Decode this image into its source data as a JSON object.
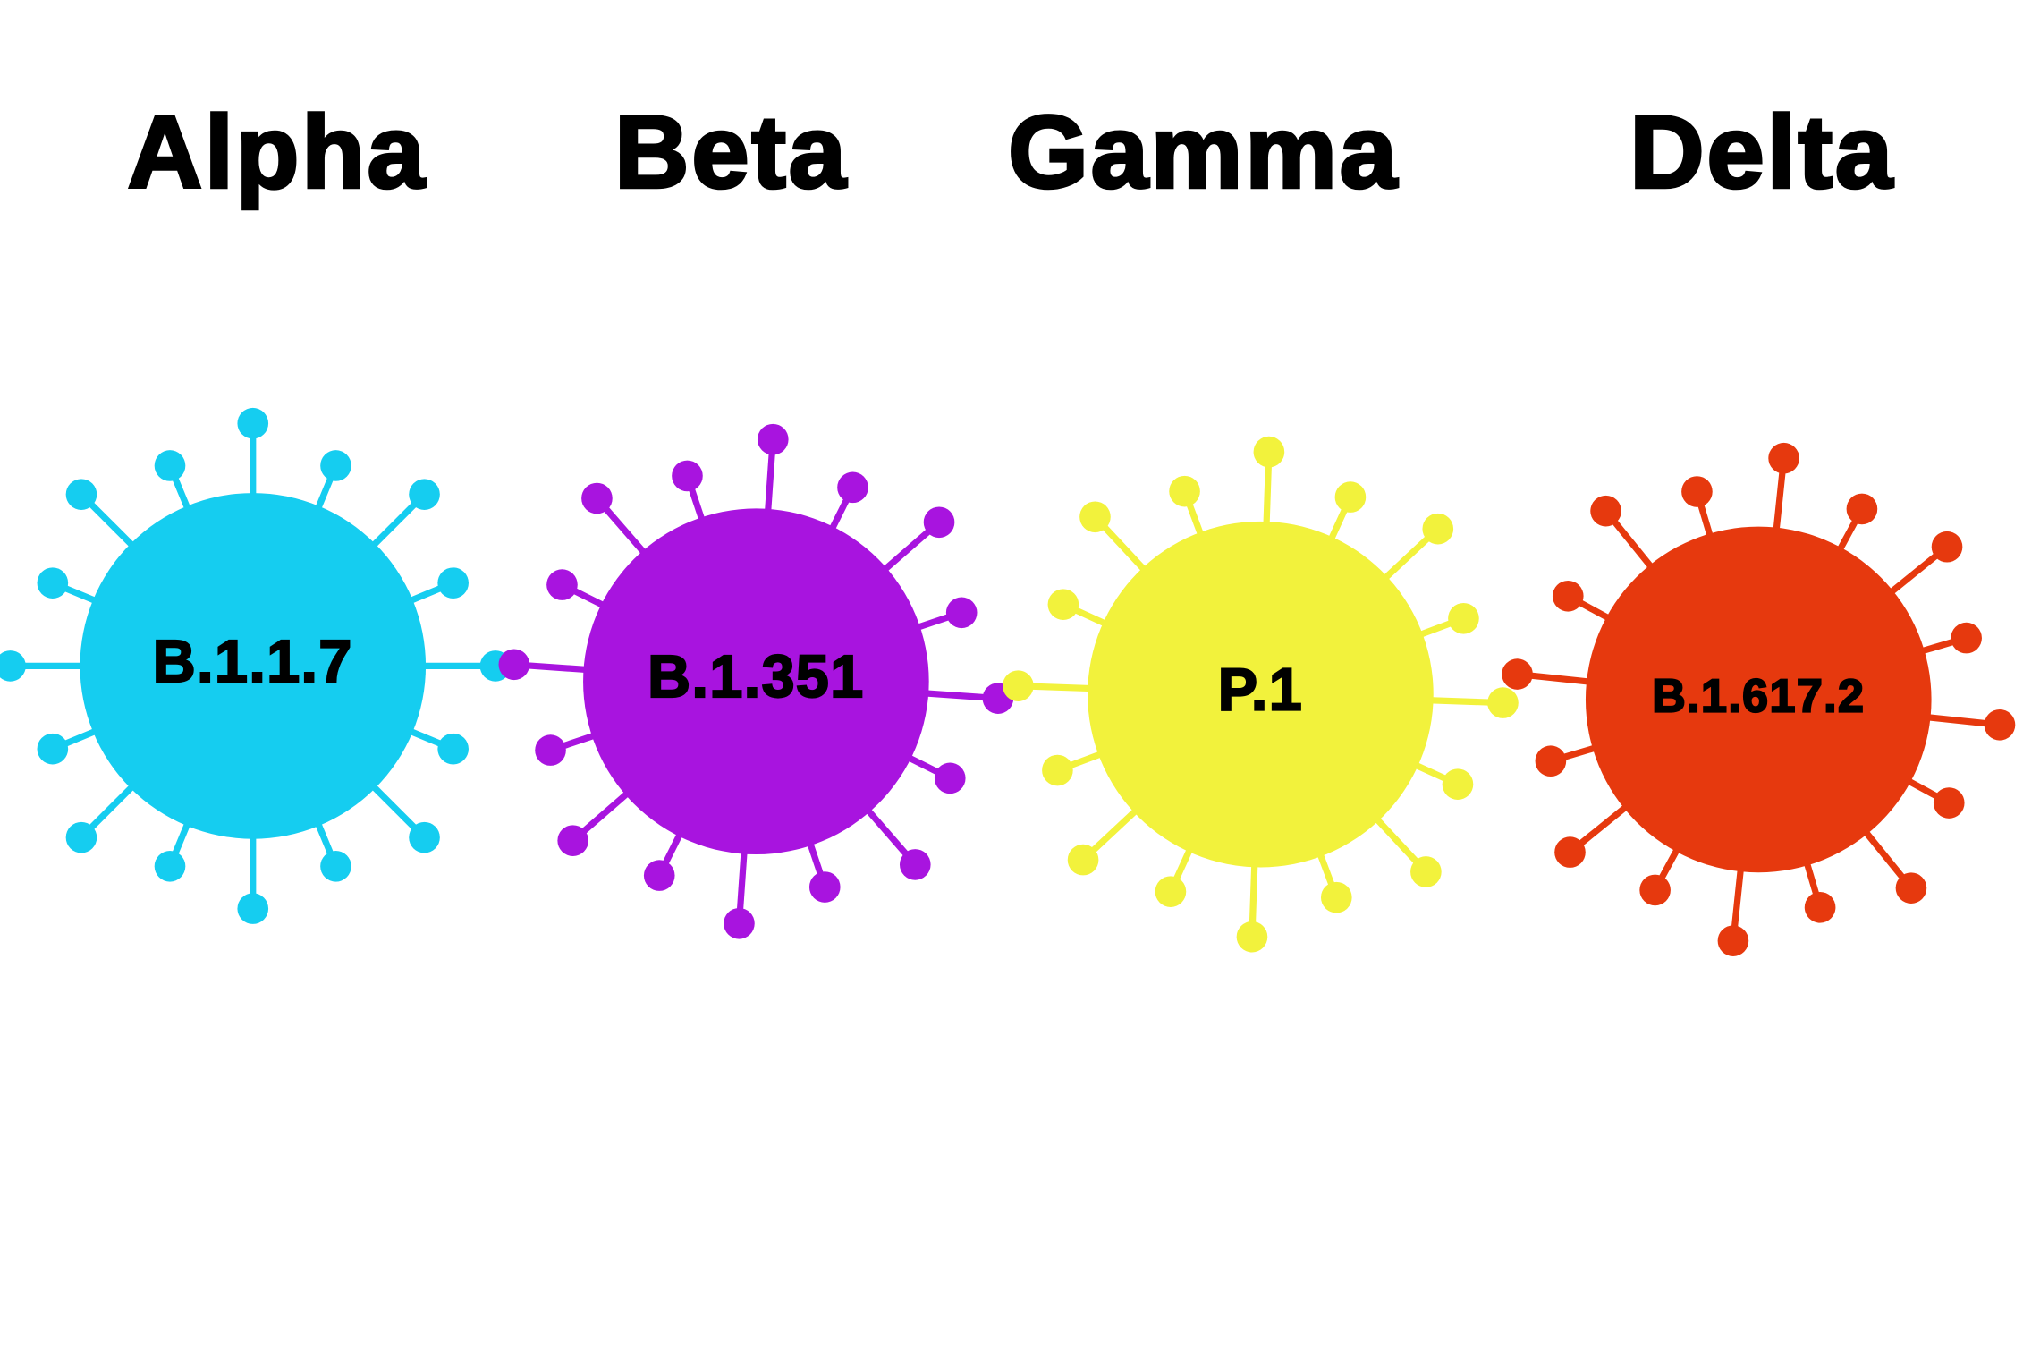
{
  "variants": [
    {
      "name": "Alpha",
      "lineage": "B.1.1.7",
      "color": "#15cdf0"
    },
    {
      "name": "Beta",
      "lineage": "B.1.351",
      "color": "#a814df"
    },
    {
      "name": "Gamma",
      "lineage": "P.1",
      "color": "#f2f23c"
    },
    {
      "name": "Delta",
      "lineage": "B.1.617.2",
      "color": "#e6390e"
    }
  ]
}
